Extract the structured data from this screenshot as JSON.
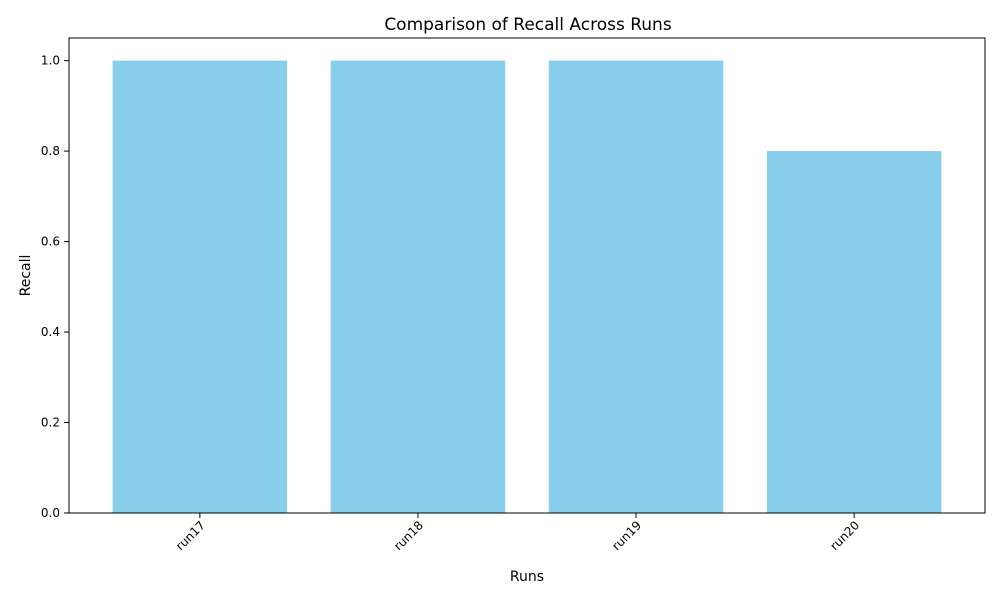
{
  "chart_data": {
    "type": "bar",
    "title": "Comparison of Recall Across Runs",
    "xlabel": "Runs",
    "ylabel": "Recall",
    "categories": [
      "run17",
      "run18",
      "run19",
      "run20"
    ],
    "values": [
      1.0,
      1.0,
      1.0,
      0.8
    ],
    "ylim": [
      0,
      1.05
    ],
    "yticks": [
      "0.0",
      "0.2",
      "0.4",
      "0.6",
      "0.8",
      "1.0"
    ],
    "xtick_rotation_deg": 45,
    "grid": false,
    "legend": "none",
    "bar_color": "#87CEEB"
  }
}
